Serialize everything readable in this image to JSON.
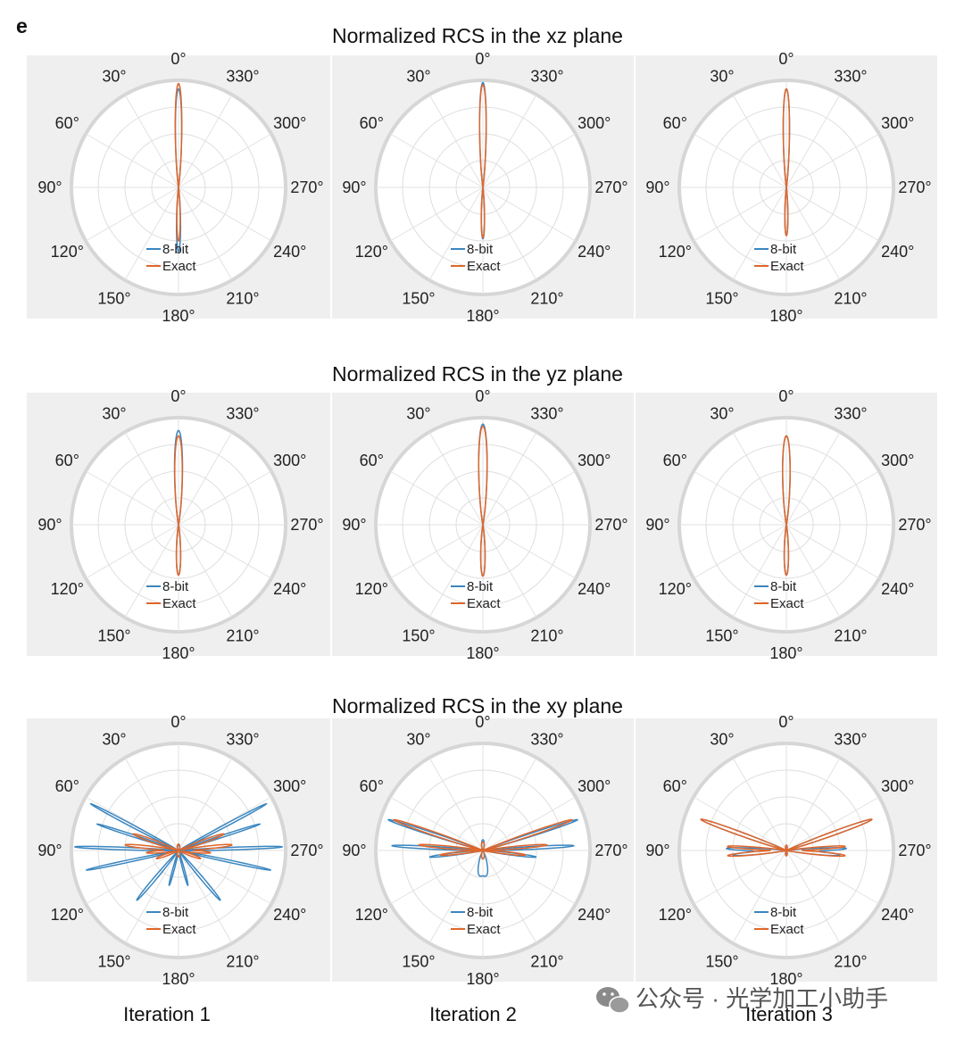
{
  "panel_label": "e",
  "watermark": "公众号 · 光学加工小助手",
  "colors": {
    "bit8": "#3a86c0",
    "exact": "#e0662a",
    "panel_bg": "#efefef"
  },
  "chart_data": {
    "type": "polar",
    "angle_labels": [
      "0°",
      "30°",
      "60°",
      "90°",
      "120°",
      "150°",
      "180°",
      "210°",
      "240°",
      "270°",
      "300°",
      "330°"
    ],
    "angle_direction": "counterclockwise",
    "zero_location": "top",
    "radial_tick_labels": "none",
    "grid": true,
    "legend": {
      "entries": [
        "8-bit",
        "Exact"
      ],
      "placement": "lower-center"
    },
    "columns": [
      "Iteration 1",
      "Iteration 2",
      "Iteration 3"
    ],
    "rows": [
      {
        "title": "Normalized RCS in the xz plane",
        "panels": [
          {
            "series": [
              {
                "name": "8-bit",
                "lobes": [
                  {
                    "a": 0,
                    "r": 0.92,
                    "w": 3
                  },
                  {
                    "a": 180,
                    "r": 0.6,
                    "w": 3
                  }
                ]
              },
              {
                "name": "Exact",
                "lobes": [
                  {
                    "a": 0,
                    "r": 0.97,
                    "w": 3
                  },
                  {
                    "a": 180,
                    "r": 0.5,
                    "w": 3
                  }
                ]
              }
            ]
          },
          {
            "series": [
              {
                "name": "8-bit",
                "lobes": [
                  {
                    "a": 0,
                    "r": 0.98,
                    "w": 3
                  },
                  {
                    "a": 180,
                    "r": 0.48,
                    "w": 3
                  }
                ]
              },
              {
                "name": "Exact",
                "lobes": [
                  {
                    "a": 0,
                    "r": 0.96,
                    "w": 3
                  },
                  {
                    "a": 180,
                    "r": 0.47,
                    "w": 3
                  }
                ]
              }
            ]
          },
          {
            "series": [
              {
                "name": "8-bit",
                "lobes": [
                  {
                    "a": 0,
                    "r": 0.92,
                    "w": 3
                  },
                  {
                    "a": 180,
                    "r": 0.45,
                    "w": 3
                  }
                ]
              },
              {
                "name": "Exact",
                "lobes": [
                  {
                    "a": 0,
                    "r": 0.92,
                    "w": 3
                  },
                  {
                    "a": 180,
                    "r": 0.45,
                    "w": 3
                  }
                ]
              }
            ]
          }
        ]
      },
      {
        "title": "Normalized RCS in the yz plane",
        "panels": [
          {
            "series": [
              {
                "name": "8-bit",
                "lobes": [
                  {
                    "a": 0,
                    "r": 0.88,
                    "w": 4
                  },
                  {
                    "a": 180,
                    "r": 0.47,
                    "w": 4
                  }
                ]
              },
              {
                "name": "Exact",
                "lobes": [
                  {
                    "a": 0,
                    "r": 0.83,
                    "w": 4
                  },
                  {
                    "a": 180,
                    "r": 0.47,
                    "w": 4
                  }
                ]
              }
            ]
          },
          {
            "series": [
              {
                "name": "8-bit",
                "lobes": [
                  {
                    "a": 0,
                    "r": 0.94,
                    "w": 4
                  },
                  {
                    "a": 180,
                    "r": 0.48,
                    "w": 4
                  }
                ]
              },
              {
                "name": "Exact",
                "lobes": [
                  {
                    "a": 0,
                    "r": 0.92,
                    "w": 4
                  },
                  {
                    "a": 180,
                    "r": 0.48,
                    "w": 4
                  }
                ]
              }
            ]
          },
          {
            "series": [
              {
                "name": "8-bit",
                "lobes": [
                  {
                    "a": 0,
                    "r": 0.83,
                    "w": 4
                  },
                  {
                    "a": 180,
                    "r": 0.47,
                    "w": 4
                  }
                ]
              },
              {
                "name": "Exact",
                "lobes": [
                  {
                    "a": 0,
                    "r": 0.83,
                    "w": 4
                  },
                  {
                    "a": 180,
                    "r": 0.47,
                    "w": 4
                  }
                ]
              }
            ]
          }
        ]
      },
      {
        "title": "Normalized RCS in the xy plane",
        "panels": [
          {
            "series": [
              {
                "name": "8-bit",
                "lobes": [
                  {
                    "a": 62,
                    "r": 0.93,
                    "w": 1.2
                  },
                  {
                    "a": 298,
                    "r": 0.93,
                    "w": 1.2
                  },
                  {
                    "a": 72,
                    "r": 0.8,
                    "w": 1.2
                  },
                  {
                    "a": 288,
                    "r": 0.8,
                    "w": 1.2
                  },
                  {
                    "a": 88,
                    "r": 0.97,
                    "w": 1.2
                  },
                  {
                    "a": 272,
                    "r": 0.97,
                    "w": 1.2
                  },
                  {
                    "a": 102,
                    "r": 0.88,
                    "w": 1.2
                  },
                  {
                    "a": 258,
                    "r": 0.88,
                    "w": 1.2
                  },
                  {
                    "a": 140,
                    "r": 0.6,
                    "w": 2
                  },
                  {
                    "a": 220,
                    "r": 0.6,
                    "w": 2
                  },
                  {
                    "a": 165,
                    "r": 0.3,
                    "w": 2
                  },
                  {
                    "a": 195,
                    "r": 0.3,
                    "w": 2
                  },
                  {
                    "a": 0,
                    "r": 0.05,
                    "w": 20
                  },
                  {
                    "a": 180,
                    "r": 0.05,
                    "w": 20
                  }
                ]
              },
              {
                "name": "Exact",
                "lobes": [
                  {
                    "a": 70,
                    "r": 0.45,
                    "w": 3
                  },
                  {
                    "a": 290,
                    "r": 0.45,
                    "w": 3
                  },
                  {
                    "a": 84,
                    "r": 0.5,
                    "w": 2.5
                  },
                  {
                    "a": 276,
                    "r": 0.5,
                    "w": 2.5
                  },
                  {
                    "a": 94,
                    "r": 0.3,
                    "w": 3
                  },
                  {
                    "a": 266,
                    "r": 0.3,
                    "w": 3
                  },
                  {
                    "a": 110,
                    "r": 0.22,
                    "w": 4
                  },
                  {
                    "a": 250,
                    "r": 0.22,
                    "w": 4
                  },
                  {
                    "a": 0,
                    "r": 0.06,
                    "w": 20
                  },
                  {
                    "a": 180,
                    "r": 0.06,
                    "w": 20
                  }
                ]
              }
            ]
          },
          {
            "series": [
              {
                "name": "8-bit",
                "lobes": [
                  {
                    "a": 72,
                    "r": 0.93,
                    "w": 1.5
                  },
                  {
                    "a": 288,
                    "r": 0.93,
                    "w": 1.5
                  },
                  {
                    "a": 87,
                    "r": 0.85,
                    "w": 1.5
                  },
                  {
                    "a": 273,
                    "r": 0.85,
                    "w": 1.5
                  },
                  {
                    "a": 97,
                    "r": 0.5,
                    "w": 2
                  },
                  {
                    "a": 263,
                    "r": 0.5,
                    "w": 2
                  },
                  {
                    "a": 170,
                    "r": 0.15,
                    "w": 8
                  },
                  {
                    "a": 190,
                    "r": 0.15,
                    "w": 8
                  },
                  {
                    "a": 0,
                    "r": 0.1,
                    "w": 12
                  },
                  {
                    "a": 180,
                    "r": 0.1,
                    "w": 12
                  }
                ]
              },
              {
                "name": "Exact",
                "lobes": [
                  {
                    "a": 71,
                    "r": 0.88,
                    "w": 1.8
                  },
                  {
                    "a": 289,
                    "r": 0.88,
                    "w": 1.8
                  },
                  {
                    "a": 85,
                    "r": 0.6,
                    "w": 2
                  },
                  {
                    "a": 275,
                    "r": 0.6,
                    "w": 2
                  },
                  {
                    "a": 96,
                    "r": 0.4,
                    "w": 2.5
                  },
                  {
                    "a": 264,
                    "r": 0.4,
                    "w": 2.5
                  },
                  {
                    "a": 0,
                    "r": 0.08,
                    "w": 15
                  },
                  {
                    "a": 180,
                    "r": 0.08,
                    "w": 15
                  }
                ]
              }
            ]
          },
          {
            "series": [
              {
                "name": "8-bit",
                "lobes": [
                  {
                    "a": 70,
                    "r": 0.85,
                    "w": 2
                  },
                  {
                    "a": 290,
                    "r": 0.85,
                    "w": 2
                  },
                  {
                    "a": 88,
                    "r": 0.55,
                    "w": 2
                  },
                  {
                    "a": 272,
                    "r": 0.55,
                    "w": 2
                  },
                  {
                    "a": 95,
                    "r": 0.5,
                    "w": 2.5
                  },
                  {
                    "a": 265,
                    "r": 0.5,
                    "w": 2.5
                  },
                  {
                    "a": 0,
                    "r": 0.05,
                    "w": 15
                  },
                  {
                    "a": 180,
                    "r": 0.05,
                    "w": 15
                  }
                ]
              },
              {
                "name": "Exact",
                "lobes": [
                  {
                    "a": 70,
                    "r": 0.85,
                    "w": 2
                  },
                  {
                    "a": 290,
                    "r": 0.85,
                    "w": 2
                  },
                  {
                    "a": 86,
                    "r": 0.55,
                    "w": 2
                  },
                  {
                    "a": 274,
                    "r": 0.55,
                    "w": 2
                  },
                  {
                    "a": 95,
                    "r": 0.55,
                    "w": 2.5
                  },
                  {
                    "a": 265,
                    "r": 0.55,
                    "w": 2.5
                  },
                  {
                    "a": 0,
                    "r": 0.05,
                    "w": 15
                  },
                  {
                    "a": 180,
                    "r": 0.05,
                    "w": 15
                  }
                ]
              }
            ]
          }
        ]
      }
    ]
  }
}
